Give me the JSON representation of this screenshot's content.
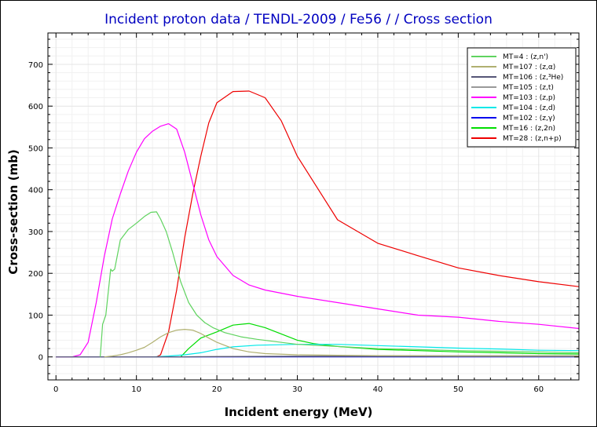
{
  "chart_data": {
    "type": "line",
    "title": "Incident proton data / TENDL-2009 / Fe56 / / Cross section",
    "xlabel": "Incident energy (MeV)",
    "ylabel": "Cross-section (mb)",
    "xlim": [
      -1,
      65
    ],
    "ylim": [
      -55,
      775
    ],
    "xticks": [
      0,
      10,
      20,
      30,
      40,
      50,
      60
    ],
    "yticks": [
      0,
      100,
      200,
      300,
      400,
      500,
      600,
      700
    ],
    "grid": true,
    "legend_position": "top-right",
    "colors": {
      "title": "#0000c0",
      "grid": "#e4e4e4",
      "axis": "#000000"
    },
    "series": [
      {
        "name": "MT=4 : (z,n')",
        "color": "#5fd35f",
        "x": [
          5.5,
          5.8,
          6.2,
          6.8,
          7.0,
          7.3,
          7.6,
          8.0,
          9.0,
          10.0,
          11.0,
          11.8,
          12.5,
          13.0,
          13.7,
          14.5,
          15.5,
          16.5,
          17.5,
          18.5,
          19.5,
          21,
          23,
          25,
          30,
          35,
          40,
          50,
          60,
          65
        ],
        "y": [
          0,
          78,
          100,
          210,
          205,
          210,
          240,
          280,
          305,
          320,
          336,
          346,
          347,
          330,
          300,
          250,
          180,
          130,
          100,
          82,
          70,
          58,
          48,
          42,
          30,
          25,
          20,
          15,
          12,
          10
        ]
      },
      {
        "name": "MT=107 : (z,α)",
        "color": "#b0b070",
        "x": [
          6,
          7,
          8,
          9,
          10,
          11,
          12,
          13,
          14,
          15,
          16,
          17,
          18,
          19,
          20,
          22,
          24,
          26,
          30,
          35,
          40,
          50,
          60,
          65
        ],
        "y": [
          0,
          2,
          5,
          10,
          16,
          23,
          35,
          48,
          58,
          64,
          66,
          64,
          56,
          45,
          35,
          20,
          12,
          8,
          5,
          4,
          3,
          2,
          2,
          2
        ]
      },
      {
        "name": "MT=106 : (z,³He)",
        "color": "#555577",
        "x": [
          0,
          5,
          10,
          15,
          20,
          30,
          40,
          50,
          60,
          65
        ],
        "y": [
          0,
          0,
          0,
          0,
          0.5,
          1,
          1,
          1,
          1,
          1
        ]
      },
      {
        "name": "MT=105 : (z,t)",
        "color": "#999999",
        "x": [
          0,
          10,
          15,
          20,
          30,
          40,
          50,
          60,
          65
        ],
        "y": [
          0,
          0,
          0,
          1,
          2,
          3,
          3,
          3,
          3
        ]
      },
      {
        "name": "MT=103 : (z,p)",
        "color": "#ff00ff",
        "x": [
          0,
          2,
          3,
          4,
          5,
          6,
          7,
          8,
          9,
          10,
          11,
          12,
          13,
          14,
          15,
          16,
          17,
          18,
          19,
          20,
          22,
          24,
          26,
          30,
          35,
          40,
          45,
          50,
          55,
          60,
          65
        ],
        "y": [
          0,
          0,
          5,
          35,
          130,
          240,
          330,
          390,
          445,
          490,
          522,
          540,
          552,
          558,
          545,
          490,
          415,
          340,
          280,
          240,
          195,
          172,
          160,
          145,
          130,
          115,
          100,
          95,
          85,
          78,
          68
        ]
      },
      {
        "name": "MT=104 : (z,d)",
        "color": "#00e8e8",
        "x": [
          12,
          14,
          16,
          18,
          20,
          22,
          25,
          30,
          35,
          40,
          45,
          50,
          55,
          60,
          65
        ],
        "y": [
          0,
          2,
          5,
          10,
          18,
          24,
          28,
          30,
          30,
          27,
          24,
          21,
          19,
          16,
          15
        ]
      },
      {
        "name": "MT=102 : (z,γ)",
        "color": "#0000ee",
        "x": [
          0,
          5,
          10,
          15,
          20,
          30,
          40,
          50,
          60,
          65
        ],
        "y": [
          0,
          0,
          0,
          0,
          0,
          0,
          0,
          0,
          0,
          0
        ]
      },
      {
        "name": "MT=16 : (z,2n)",
        "color": "#00dd00",
        "x": [
          15.5,
          16.5,
          18,
          20,
          22,
          24,
          26,
          28,
          30,
          32,
          35,
          40,
          45,
          50,
          55,
          60,
          65
        ],
        "y": [
          0,
          20,
          45,
          60,
          76,
          80,
          70,
          55,
          40,
          32,
          25,
          18,
          15,
          12,
          10,
          8,
          7
        ]
      },
      {
        "name": "MT=28 : (z,n+p)",
        "color": "#ee0000",
        "x": [
          12.5,
          13,
          14,
          15,
          16,
          17,
          18,
          19,
          20,
          22,
          24,
          26,
          28,
          30,
          35,
          40,
          45,
          50,
          55,
          60,
          65
        ],
        "y": [
          0,
          5,
          60,
          160,
          285,
          390,
          480,
          560,
          608,
          635,
          636,
          620,
          565,
          480,
          328,
          272,
          242,
          213,
          195,
          180,
          168
        ]
      }
    ]
  }
}
